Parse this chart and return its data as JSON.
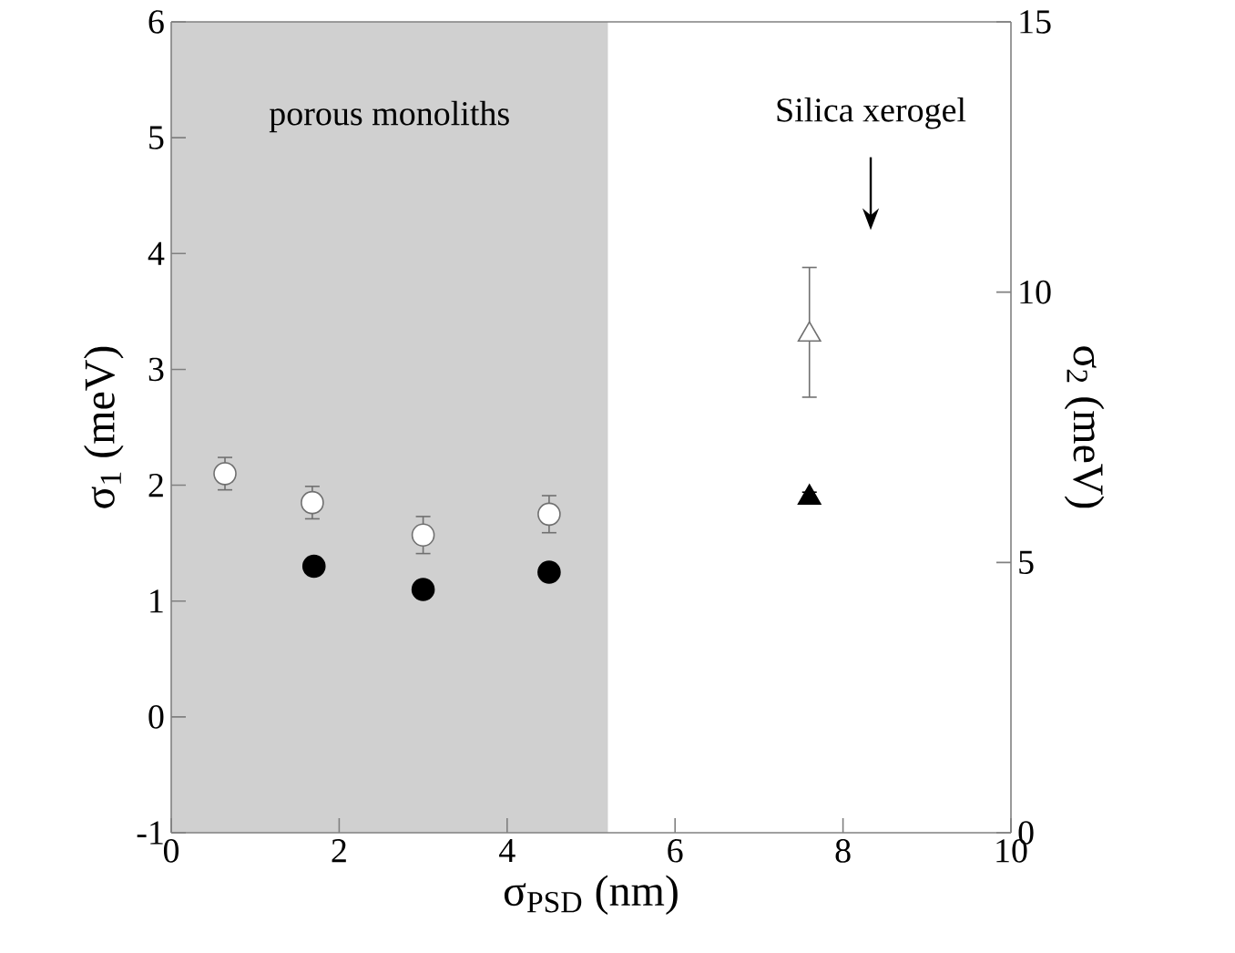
{
  "chart_data": {
    "type": "scatter",
    "xlabel": "σ$_{PSD}$ (nm)",
    "ylabel": "σ$_{1}$ (meV)",
    "y2label": "σ$_{2}$ (meV)",
    "xlim": [
      0,
      10
    ],
    "xticks": [
      0,
      2,
      4,
      6,
      8,
      10
    ],
    "ylim": [
      -1,
      6
    ],
    "yticks": [
      -1,
      0,
      1,
      2,
      3,
      4,
      5,
      6
    ],
    "y2lim": [
      0,
      15
    ],
    "y2ticks": [
      0,
      5,
      10,
      15
    ],
    "bands": [
      {
        "axis": "x",
        "from": 0,
        "to": 5.2,
        "label": "porous monoliths",
        "color": "#d0d0d0"
      }
    ],
    "annotations": [
      "Silica xerogel"
    ],
    "series": [
      {
        "color": "#707070",
        "marker": "circle",
        "x": [
          0.64,
          1.68,
          3.0,
          4.5
        ],
        "values": [
          2.1,
          1.85,
          1.57,
          1.75
        ],
        "errors": [
          0.14,
          0.14,
          0.16,
          0.16
        ]
      },
      {
        "color": "#000000",
        "marker": "circle",
        "axis": "y2",
        "x": [
          1.7,
          3.0,
          4.5
        ],
        "values": [
          4.93,
          4.5,
          4.82
        ]
      },
      {
        "color": "#707070",
        "marker": "triangle",
        "x": [
          7.6
        ],
        "values": [
          3.3
        ],
        "errors": [
          [
            2.76,
            3.88
          ]
        ]
      },
      {
        "color": "#000000",
        "marker": "triangle",
        "axis": "y2",
        "x": [
          7.6
        ],
        "values": [
          6.2
        ],
        "errors": [
          0.1
        ]
      }
    ]
  }
}
